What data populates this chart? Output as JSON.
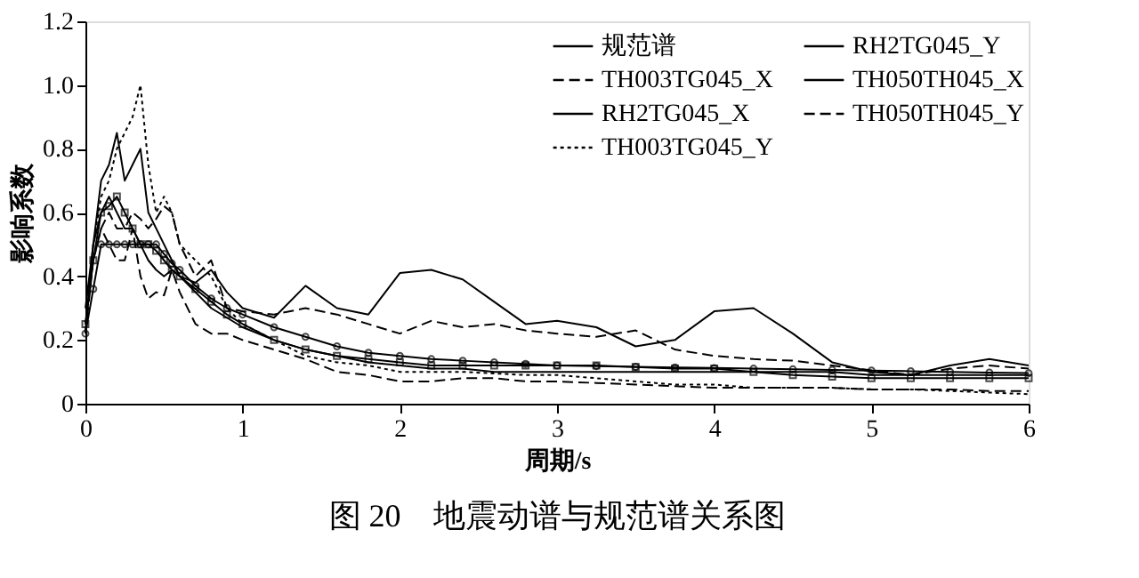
{
  "chart_data": {
    "type": "line",
    "title": "图 20　地震动谱与规范谱关系图",
    "xlabel": "周期/s",
    "ylabel": "影响系数",
    "x": [
      0,
      0.05,
      0.1,
      0.15,
      0.2,
      0.25,
      0.3,
      0.35,
      0.4,
      0.45,
      0.5,
      0.55,
      0.6,
      0.7,
      0.8,
      0.9,
      1.0,
      1.2,
      1.4,
      1.6,
      1.8,
      2.0,
      2.2,
      2.4,
      2.6,
      2.8,
      3.0,
      3.25,
      3.5,
      3.75,
      4.0,
      4.25,
      4.5,
      4.75,
      5.0,
      5.25,
      5.5,
      5.75,
      6.0
    ],
    "series": [
      {
        "name": "规范谱",
        "color": "#000000",
        "line_style": "solid",
        "marker": "circle",
        "values": [
          0.22,
          0.36,
          0.5,
          0.5,
          0.5,
          0.5,
          0.5,
          0.5,
          0.5,
          0.5,
          0.47,
          0.44,
          0.42,
          0.37,
          0.33,
          0.3,
          0.28,
          0.24,
          0.21,
          0.18,
          0.16,
          0.15,
          0.14,
          0.135,
          0.13,
          0.125,
          0.12,
          0.118,
          0.116,
          0.114,
          0.112,
          0.11,
          0.108,
          0.106,
          0.104,
          0.102,
          0.1,
          0.098,
          0.096
        ]
      },
      {
        "name": "TH003TG045_X",
        "color": "#000000",
        "line_style": "dashed",
        "marker": "none",
        "values": [
          0.22,
          0.45,
          0.55,
          0.5,
          0.45,
          0.45,
          0.55,
          0.4,
          0.33,
          0.35,
          0.34,
          0.42,
          0.35,
          0.25,
          0.22,
          0.22,
          0.2,
          0.17,
          0.14,
          0.1,
          0.09,
          0.07,
          0.07,
          0.08,
          0.08,
          0.07,
          0.07,
          0.065,
          0.06,
          0.055,
          0.05,
          0.05,
          0.05,
          0.05,
          0.045,
          0.045,
          0.045,
          0.04,
          0.04
        ]
      },
      {
        "name": "RH2TG045_X",
        "color": "#000000",
        "line_style": "solid",
        "marker": "square",
        "values": [
          0.25,
          0.45,
          0.6,
          0.62,
          0.65,
          0.6,
          0.55,
          0.5,
          0.5,
          0.48,
          0.45,
          0.42,
          0.4,
          0.36,
          0.32,
          0.28,
          0.25,
          0.2,
          0.17,
          0.15,
          0.14,
          0.13,
          0.12,
          0.12,
          0.12,
          0.12,
          0.12,
          0.12,
          0.115,
          0.11,
          0.11,
          0.1,
          0.09,
          0.085,
          0.08,
          0.08,
          0.08,
          0.08,
          0.08
        ]
      },
      {
        "name": "TH003TG045_Y",
        "color": "#000000",
        "line_style": "dotted",
        "marker": "none",
        "values": [
          0.25,
          0.5,
          0.65,
          0.7,
          0.8,
          0.85,
          0.9,
          1.0,
          0.75,
          0.6,
          0.65,
          0.6,
          0.5,
          0.45,
          0.4,
          0.3,
          0.25,
          0.2,
          0.15,
          0.13,
          0.12,
          0.1,
          0.1,
          0.1,
          0.095,
          0.09,
          0.09,
          0.08,
          0.07,
          0.06,
          0.06,
          0.05,
          0.05,
          0.05,
          0.045,
          0.045,
          0.04,
          0.035,
          0.03
        ]
      },
      {
        "name": "RH2TG045_Y",
        "color": "#000000",
        "line_style": "solid",
        "marker": "none",
        "values": [
          0.23,
          0.5,
          0.7,
          0.75,
          0.85,
          0.7,
          0.75,
          0.8,
          0.6,
          0.55,
          0.5,
          0.45,
          0.4,
          0.35,
          0.3,
          0.27,
          0.24,
          0.2,
          0.17,
          0.15,
          0.13,
          0.12,
          0.11,
          0.11,
          0.1,
          0.1,
          0.1,
          0.1,
          0.1,
          0.1,
          0.1,
          0.1,
          0.1,
          0.1,
          0.09,
          0.09,
          0.09,
          0.09,
          0.09
        ]
      },
      {
        "name": "TH050TH045_X",
        "color": "#000000",
        "line_style": "solid",
        "marker": "none",
        "values": [
          0.3,
          0.5,
          0.6,
          0.65,
          0.6,
          0.55,
          0.55,
          0.5,
          0.45,
          0.42,
          0.4,
          0.42,
          0.4,
          0.38,
          0.42,
          0.35,
          0.3,
          0.27,
          0.37,
          0.3,
          0.28,
          0.41,
          0.42,
          0.39,
          0.32,
          0.25,
          0.26,
          0.24,
          0.18,
          0.2,
          0.29,
          0.3,
          0.22,
          0.13,
          0.1,
          0.09,
          0.12,
          0.14,
          0.12
        ]
      },
      {
        "name": "TH050TH045_Y",
        "color": "#000000",
        "line_style": "dashed",
        "marker": "none",
        "values": [
          0.25,
          0.45,
          0.55,
          0.6,
          0.55,
          0.55,
          0.6,
          0.58,
          0.55,
          0.58,
          0.62,
          0.6,
          0.5,
          0.4,
          0.45,
          0.3,
          0.29,
          0.28,
          0.3,
          0.28,
          0.25,
          0.22,
          0.26,
          0.24,
          0.25,
          0.23,
          0.22,
          0.21,
          0.23,
          0.17,
          0.15,
          0.14,
          0.135,
          0.12,
          0.105,
          0.09,
          0.11,
          0.12,
          0.11
        ]
      }
    ],
    "xlim": [
      0,
      6
    ],
    "xticks": [
      0,
      1,
      2,
      3,
      4,
      5,
      6
    ],
    "ylim": [
      0,
      1.2
    ],
    "yticks": [
      0,
      0.2,
      0.4,
      0.6,
      0.8,
      {
        "value": 1.0,
        "label": "1.0"
      },
      1.2
    ],
    "grid": false,
    "legend": "top right"
  }
}
